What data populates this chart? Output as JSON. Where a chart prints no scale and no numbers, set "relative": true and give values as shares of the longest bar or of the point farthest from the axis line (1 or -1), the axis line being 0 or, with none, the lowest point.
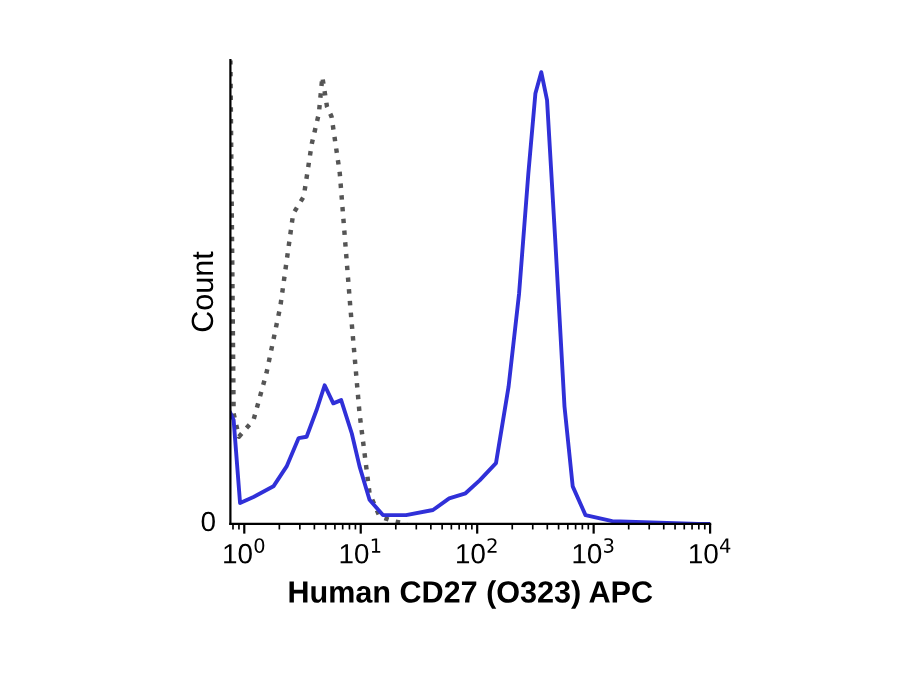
{
  "chart_data": {
    "type": "line",
    "relative": true,
    "xlabel": "Human CD27 (O323) APC",
    "ylabel": "Count",
    "log": "x",
    "xlim": [
      0.76,
      10000
    ],
    "xticks": [
      {
        "value": 1,
        "label": "10$^{0}$"
      },
      {
        "value": 10,
        "label": "10$^{1}$"
      },
      {
        "value": 100,
        "label": "10$^{2}$"
      },
      {
        "value": 1000,
        "label": "10$^{3}$"
      },
      {
        "value": 10000,
        "label": "10$^{4}$"
      }
    ],
    "annotations": [
      "0"
    ],
    "grid": false,
    "legend": false,
    "marker": "none",
    "series": [
      {
        "color": "#555555",
        "line_style": "dotted",
        "x": [
          0.76,
          0.81,
          0.9,
          1.2,
          1.55,
          2.04,
          2.63,
          3.24,
          3.8,
          4.37,
          4.68,
          5.13,
          5.62,
          6.61,
          8.13,
          9.77,
          11.9,
          14.5,
          19.1,
          25.1
        ],
        "values": [
          1.0,
          0.238,
          0.188,
          0.224,
          0.325,
          0.469,
          0.669,
          0.706,
          0.82,
          0.885,
          0.964,
          0.9,
          0.878,
          0.756,
          0.469,
          0.238,
          0.066,
          0.016,
          0.006,
          0
        ]
      },
      {
        "color": "#3030d8",
        "line_style": "solid",
        "x": [
          0.76,
          0.81,
          0.92,
          1.2,
          1.78,
          2.31,
          2.93,
          3.43,
          4.17,
          4.9,
          5.81,
          6.79,
          8.38,
          9.77,
          11.9,
          15.5,
          24.5,
          41.7,
          57.5,
          79.4,
          105,
          145,
          186,
          229,
          275,
          316,
          355,
          398,
          468,
          562,
          661,
          851,
          1445,
          7943,
          10000
        ],
        "values": [
          0.239,
          0.224,
          0.045,
          0.058,
          0.081,
          0.124,
          0.185,
          0.188,
          0.245,
          0.299,
          0.26,
          0.267,
          0.195,
          0.124,
          0.052,
          0.019,
          0.019,
          0.03,
          0.055,
          0.066,
          0.094,
          0.131,
          0.296,
          0.497,
          0.756,
          0.928,
          0.974,
          0.914,
          0.612,
          0.253,
          0.081,
          0.019,
          0.006,
          0,
          0
        ]
      }
    ]
  }
}
